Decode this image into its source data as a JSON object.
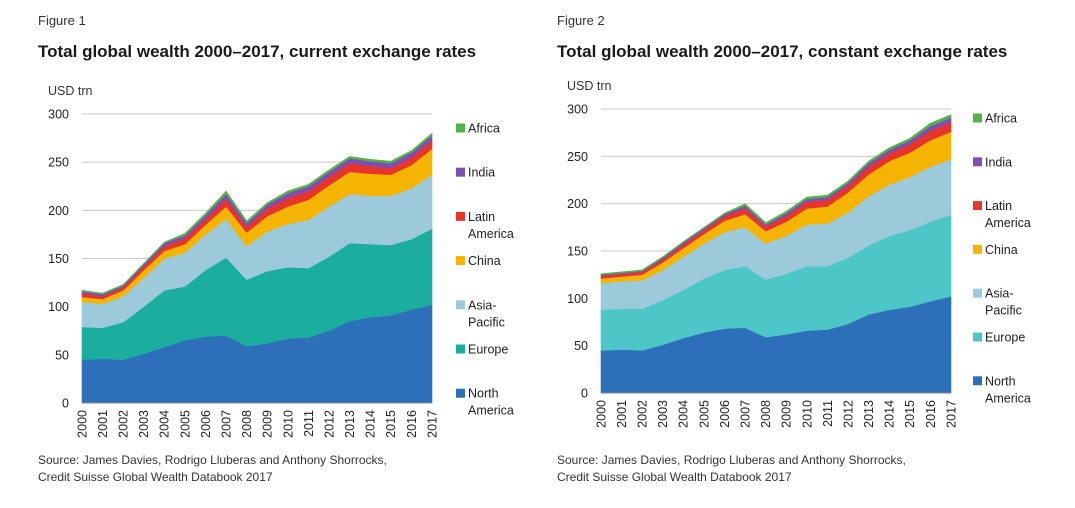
{
  "figures": [
    {
      "figure_label": "Figure 1",
      "title": "Total global wealth 2000–2017, current exchange rates",
      "unit_label": "USD trn",
      "source_line1": "Source: James Davies, Rodrigo Lluberas and Anthony Shorrocks,",
      "source_line2": "Credit Suisse Global Wealth Databook 2017"
    },
    {
      "figure_label": "Figure 2",
      "title": "Total global wealth 2000–2017, constant exchange rates",
      "unit_label": "USD trn",
      "source_line1": "Source: James Davies, Rodrigo Lluberas and Anthony Shorrocks,",
      "source_line2": "Credit Suisse Global Wealth Databook 2017"
    }
  ],
  "chart_data": [
    {
      "type": "area",
      "stacked": true,
      "title": "Total global wealth 2000–2017, current exchange rates",
      "ylabel": "USD trn",
      "ylim": [
        0,
        300
      ],
      "yticks": [
        0,
        50,
        100,
        150,
        200,
        250,
        300
      ],
      "grid": true,
      "legend_position": "right",
      "categories": [
        "2000",
        "2001",
        "2002",
        "2003",
        "2004",
        "2005",
        "2006",
        "2007",
        "2008",
        "2009",
        "2010",
        "2011",
        "2012",
        "2013",
        "2014",
        "2015",
        "2016",
        "2017"
      ],
      "series": [
        {
          "name": "North America",
          "legend_lines": [
            "North",
            "America"
          ],
          "color": "#2e6fba",
          "values": [
            45,
            46,
            45,
            51,
            58,
            65,
            69,
            70,
            59,
            62,
            67,
            68,
            75,
            85,
            89,
            91,
            97,
            102
          ]
        },
        {
          "name": "Europe",
          "legend_lines": [
            "Europe"
          ],
          "color": "#1bae9f",
          "values": [
            34,
            32,
            39,
            49,
            59,
            56,
            69,
            81,
            69,
            75,
            74,
            72,
            77,
            81,
            76,
            73,
            73,
            79
          ]
        },
        {
          "name": "Asia-Pacific",
          "legend_lines": [
            "Asia-",
            "Pacific"
          ],
          "color": "#9ccadb",
          "values": [
            26,
            25,
            27,
            30,
            33,
            35,
            37,
            40,
            35,
            41,
            45,
            50,
            52,
            51,
            50,
            51,
            53,
            56
          ]
        },
        {
          "name": "China",
          "legend_lines": [
            "China"
          ],
          "color": "#f5b400",
          "values": [
            5,
            5,
            6,
            8,
            8,
            9,
            10,
            13,
            14,
            16,
            18,
            21,
            22,
            23,
            23,
            22,
            24,
            27
          ]
        },
        {
          "name": "Latin America",
          "legend_lines": [
            "Latin",
            "America"
          ],
          "color": "#e8352b",
          "values": [
            4,
            3,
            3,
            4,
            5,
            6,
            6,
            8,
            6,
            8,
            9,
            9,
            9,
            9,
            8,
            7,
            8,
            9
          ]
        },
        {
          "name": "India",
          "legend_lines": [
            "India"
          ],
          "color": "#7d4fb5",
          "values": [
            2,
            2,
            2,
            2,
            3,
            3,
            4,
            5,
            4,
            4,
            5,
            5,
            5,
            5,
            5,
            5,
            5,
            5
          ]
        },
        {
          "name": "Africa",
          "legend_lines": [
            "Africa"
          ],
          "color": "#52b447",
          "values": [
            1,
            1,
            1,
            1,
            1,
            2,
            2,
            3,
            2,
            2,
            2,
            2,
            2,
            2,
            2,
            2,
            2,
            2
          ]
        }
      ]
    },
    {
      "type": "area",
      "stacked": true,
      "title": "Total global wealth 2000–2017, constant exchange rates",
      "ylabel": "USD trn",
      "ylim": [
        0,
        300
      ],
      "yticks": [
        0,
        50,
        100,
        150,
        200,
        250,
        300
      ],
      "grid": true,
      "legend_position": "right",
      "categories": [
        "2000",
        "2001",
        "2002",
        "2003",
        "2004",
        "2005",
        "2006",
        "2007",
        "2008",
        "2009",
        "2010",
        "2011",
        "2012",
        "2013",
        "2014",
        "2015",
        "2016",
        "2017"
      ],
      "series": [
        {
          "name": "North America",
          "legend_lines": [
            "North",
            "America"
          ],
          "color": "#2e6fba",
          "values": [
            45,
            46,
            45,
            51,
            58,
            64,
            68,
            69,
            59,
            62,
            66,
            67,
            73,
            83,
            88,
            91,
            97,
            102
          ]
        },
        {
          "name": "Europe",
          "legend_lines": [
            "Europe"
          ],
          "color": "#4cc6c6",
          "values": [
            43,
            43,
            44,
            47,
            51,
            57,
            62,
            65,
            61,
            64,
            68,
            67,
            70,
            73,
            78,
            81,
            84,
            86
          ]
        },
        {
          "name": "Asia-Pacific",
          "legend_lines": [
            "Asia-",
            "Pacific"
          ],
          "color": "#9ccadb",
          "values": [
            28,
            29,
            30,
            32,
            35,
            37,
            40,
            41,
            38,
            40,
            44,
            45,
            48,
            52,
            54,
            56,
            58,
            59
          ]
        },
        {
          "name": "China",
          "legend_lines": [
            "China"
          ],
          "color": "#f5b400",
          "values": [
            5,
            5,
            6,
            8,
            9,
            10,
            12,
            14,
            13,
            15,
            17,
            18,
            21,
            23,
            25,
            26,
            28,
            29
          ]
        },
        {
          "name": "Latin America",
          "legend_lines": [
            "Latin",
            "America"
          ],
          "color": "#e8352b",
          "values": [
            3,
            3,
            3,
            3,
            4,
            4,
            5,
            6,
            5,
            6,
            7,
            7,
            7,
            8,
            8,
            9,
            10,
            10
          ]
        },
        {
          "name": "India",
          "legend_lines": [
            "India"
          ],
          "color": "#7d4fb5",
          "values": [
            1,
            1,
            1,
            2,
            2,
            2,
            2,
            3,
            2,
            3,
            3,
            3,
            3,
            4,
            4,
            4,
            5,
            5
          ]
        },
        {
          "name": "Africa",
          "legend_lines": [
            "Africa"
          ],
          "color": "#52b447",
          "values": [
            1,
            1,
            1,
            1,
            1,
            1,
            1,
            2,
            2,
            2,
            2,
            2,
            2,
            2,
            2,
            2,
            3,
            3
          ]
        }
      ]
    }
  ]
}
